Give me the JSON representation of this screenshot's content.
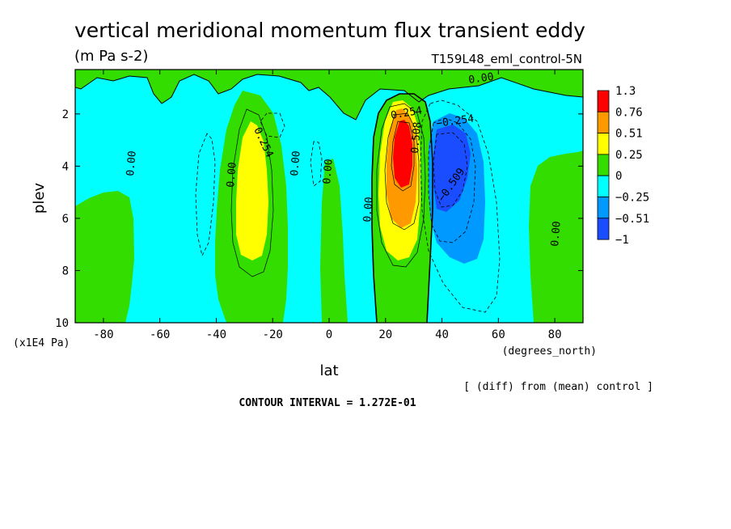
{
  "chart_data": {
    "type": "heatmap",
    "title": "vertical meridional momentum flux transient eddy",
    "units": "(m Pa s-2)",
    "run_label": "T159L48_eml_control-5N",
    "xlabel": "lat",
    "x_units": "(degrees_north)",
    "ylabel": "plev",
    "y_units": "(x1E4 Pa)",
    "x_ticks": [
      "-80",
      "-60",
      "-40",
      "-20",
      "0",
      "20",
      "40",
      "60",
      "80"
    ],
    "y_ticks": [
      "2",
      "4",
      "6",
      "8",
      "10"
    ],
    "xlim": [
      -90,
      90
    ],
    "ylim": [
      10,
      0.3
    ],
    "diff_note": "[ (diff) from (mean) control ]",
    "contour_interval_text": "CONTOUR INTERVAL = 1.272E-01",
    "contour_interval": 0.1272,
    "legend": {
      "labels": [
        "1.3",
        "0.76",
        "0.51",
        "0.25",
        "0",
        "−0.25",
        "−0.51",
        "−1"
      ],
      "colors": [
        "#ff0000",
        "#ff9900",
        "#ffff00",
        "#33dd00",
        "#00ffff",
        "#0099ff",
        "#1a4dff"
      ]
    },
    "contour_labels": [
      "0.00",
      "0.00",
      "0.00",
      "0.00",
      "0.00",
      "0.00",
      "0.254",
      "0.254",
      "0.508",
      "−0.254",
      "−0.509",
      "0.00"
    ],
    "features": [
      {
        "lat": -26,
        "plev": 4.5,
        "peak": 0.35,
        "sign": "positive"
      },
      {
        "lat": 26,
        "plev": 3.4,
        "peak": 1.0,
        "sign": "positive"
      },
      {
        "lat": 43,
        "plev": 4.1,
        "peak": -0.65,
        "sign": "negative"
      }
    ]
  }
}
